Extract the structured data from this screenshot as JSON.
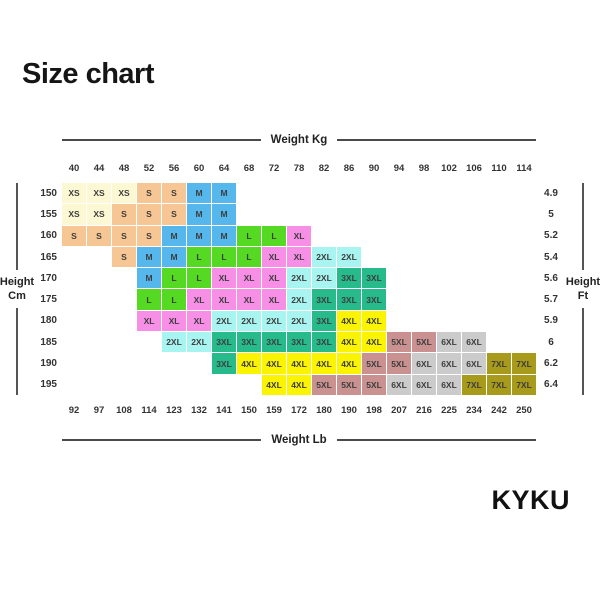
{
  "title": "Size chart",
  "brand": "KYKU",
  "chart_data": {
    "type": "heatmap",
    "title": "Size chart",
    "x_top": {
      "label": "Weight Kg",
      "ticks": [
        "40",
        "44",
        "48",
        "52",
        "56",
        "60",
        "64",
        "68",
        "72",
        "78",
        "82",
        "86",
        "90",
        "94",
        "98",
        "102",
        "106",
        "110",
        "114"
      ]
    },
    "x_bottom": {
      "label": "Weight Lb",
      "ticks": [
        "92",
        "97",
        "108",
        "114",
        "123",
        "132",
        "141",
        "150",
        "159",
        "172",
        "180",
        "190",
        "198",
        "207",
        "216",
        "225",
        "234",
        "242",
        "250"
      ]
    },
    "y_left": {
      "label": "Height Cm",
      "ticks": [
        "150",
        "155",
        "160",
        "165",
        "170",
        "175",
        "180",
        "185",
        "190",
        "195"
      ]
    },
    "y_right": {
      "label": "Height Ft",
      "ticks": [
        "4.9",
        "5",
        "5.2",
        "5.4",
        "5.6",
        "5.7",
        "5.9",
        "6",
        "6.2",
        "6.4"
      ]
    },
    "size_colors": {
      "XS": "#FBF8D3",
      "S": "#F6C794",
      "M": "#55B7EB",
      "L": "#55D922",
      "XL": "#F78FE7",
      "2XL": "#A8F4F0",
      "3XL": "#27BA8B",
      "4XL": "#FAF400",
      "5XL": "#C99290",
      "6XL": "#CBCBCB",
      "7XL": "#A89B1B"
    },
    "rows": [
      [
        "XS",
        "XS",
        "XS",
        "S",
        "S",
        "M",
        "M",
        null,
        null,
        null,
        null,
        null,
        null,
        null,
        null,
        null,
        null,
        null,
        null
      ],
      [
        "XS",
        "XS",
        "S",
        "S",
        "S",
        "M",
        "M",
        null,
        null,
        null,
        null,
        null,
        null,
        null,
        null,
        null,
        null,
        null,
        null
      ],
      [
        "S",
        "S",
        "S",
        "S",
        "M",
        "M",
        "M",
        "L",
        "L",
        "XL",
        null,
        null,
        null,
        null,
        null,
        null,
        null,
        null,
        null
      ],
      [
        null,
        null,
        "S",
        "M",
        "M",
        "L",
        "L",
        "L",
        "XL",
        "XL",
        "2XL",
        "2XL",
        null,
        null,
        null,
        null,
        null,
        null,
        null
      ],
      [
        null,
        null,
        null,
        "M",
        "L",
        "L",
        "XL",
        "XL",
        "XL",
        "2XL",
        "2XL",
        "3XL",
        "3XL",
        null,
        null,
        null,
        null,
        null,
        null
      ],
      [
        null,
        null,
        null,
        "L",
        "L",
        "XL",
        "XL",
        "XL",
        "XL",
        "2XL",
        "3XL",
        "3XL",
        "3XL",
        null,
        null,
        null,
        null,
        null,
        null
      ],
      [
        null,
        null,
        null,
        "XL",
        "XL",
        "XL",
        "2XL",
        "2XL",
        "2XL",
        "2XL",
        "3XL",
        "4XL",
        "4XL",
        null,
        null,
        null,
        null,
        null,
        null
      ],
      [
        null,
        null,
        null,
        null,
        "2XL",
        "2XL",
        "3XL",
        "3XL",
        "3XL",
        "3XL",
        "3XL",
        "4XL",
        "4XL",
        "5XL",
        "5XL",
        "6XL",
        "6XL",
        null,
        null
      ],
      [
        null,
        null,
        null,
        null,
        null,
        null,
        "3XL",
        "4XL",
        "4XL",
        "4XL",
        "4XL",
        "4XL",
        "5XL",
        "5XL",
        "6XL",
        "6XL",
        "6XL",
        "7XL",
        "7XL"
      ],
      [
        null,
        null,
        null,
        null,
        null,
        null,
        null,
        null,
        "4XL",
        "4XL",
        "5XL",
        "5XL",
        "5XL",
        "6XL",
        "6XL",
        "6XL",
        "7XL",
        "7XL",
        "7XL"
      ]
    ]
  }
}
